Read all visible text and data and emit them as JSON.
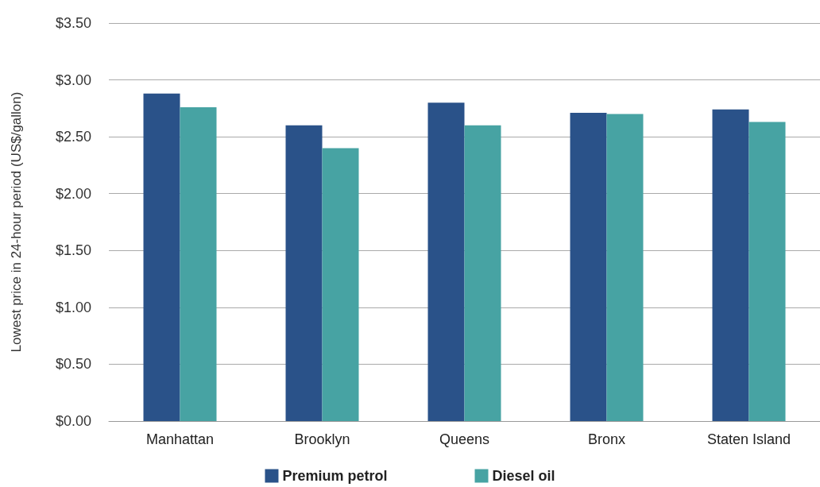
{
  "chart_data": {
    "type": "bar",
    "ylabel": "Lowest price in 24-hour period (US$/gallon)",
    "categories": [
      "Manhattan",
      "Brooklyn",
      "Queens",
      "Bronx",
      "Staten Island"
    ],
    "series": [
      {
        "name": "Premium petrol",
        "color": "#2a5289",
        "values": [
          2.88,
          2.6,
          2.8,
          2.71,
          2.74
        ]
      },
      {
        "name": "Diesel oil",
        "color": "#47a3a3",
        "values": [
          2.76,
          2.4,
          2.6,
          2.7,
          2.63
        ]
      }
    ],
    "ylim": [
      0,
      3.5
    ],
    "yticks": [
      {
        "value": 0,
        "label": "$0.00"
      },
      {
        "value": 0.5,
        "label": "$0.50"
      },
      {
        "value": 1,
        "label": "$1.00"
      },
      {
        "value": 1.5,
        "label": "$1.50"
      },
      {
        "value": 2,
        "label": "$2.00"
      },
      {
        "value": 2.5,
        "label": "$2.50"
      },
      {
        "value": 3,
        "label": "$3.00"
      },
      {
        "value": 3.5,
        "label": "$3.50"
      }
    ],
    "grid": "y",
    "legend": "bottom"
  }
}
